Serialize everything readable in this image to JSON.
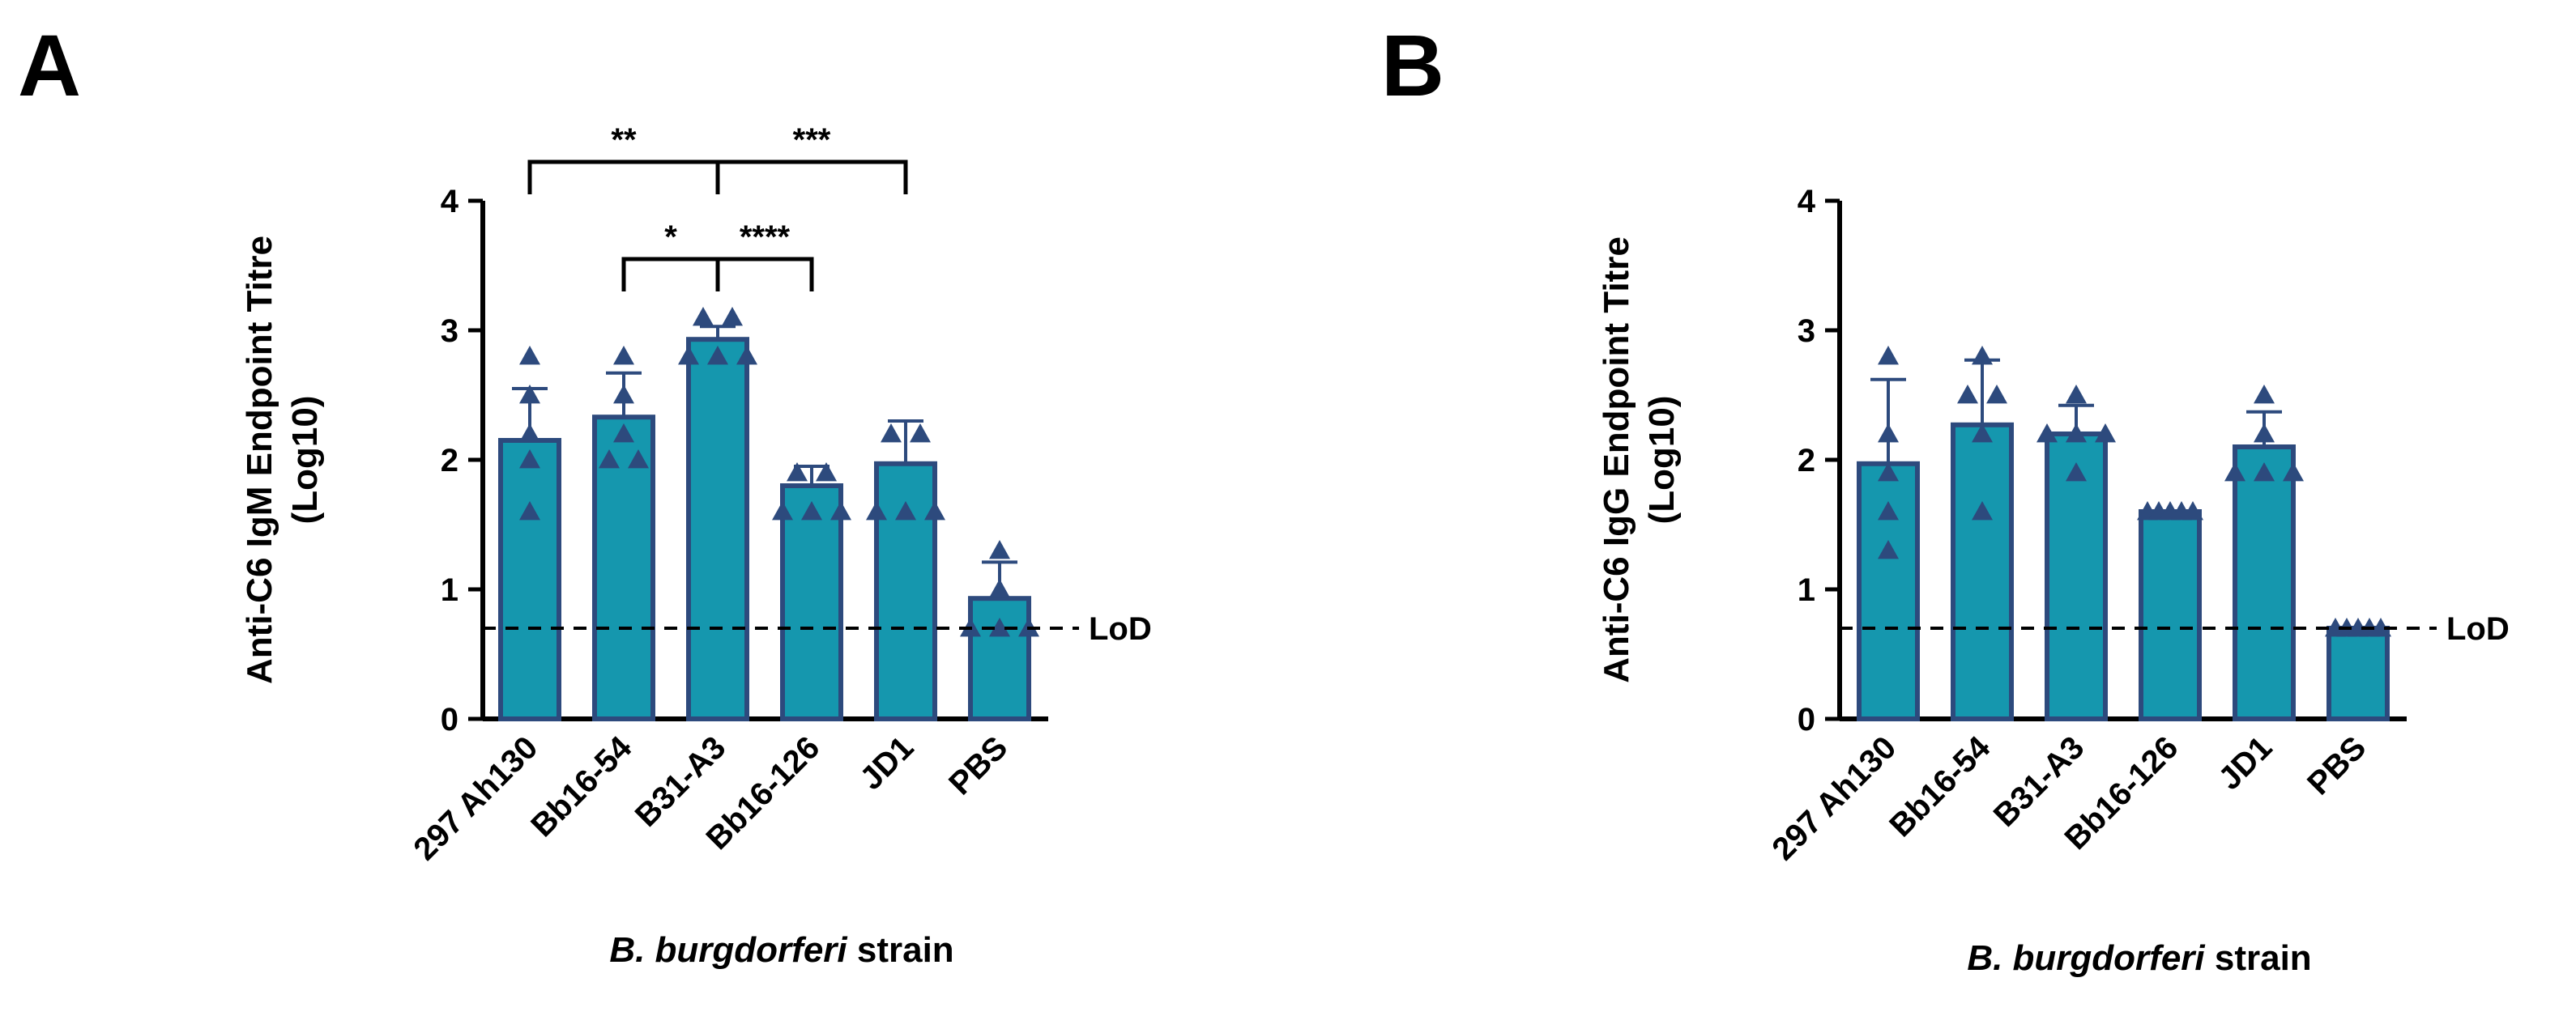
{
  "chart_data": [
    {
      "panel": "A",
      "type": "bar",
      "title": "",
      "ylabel_line1": "Anti-C6 IgM Endpoint Titre",
      "ylabel_line2": "(Log10)",
      "xlabel_italic": "B. burgdorferi",
      "xlabel_rest": " strain",
      "categories": [
        "297 Ah130",
        "Bb16-54",
        "B31-A3",
        "Bb16-126",
        "JD1",
        "PBS"
      ],
      "values": [
        2.15,
        2.33,
        2.93,
        1.8,
        1.97,
        0.93
      ],
      "sd": [
        0.4,
        0.34,
        0.1,
        0.15,
        0.33,
        0.28
      ],
      "points": [
        [
          2.8,
          2.5,
          2.2,
          2.0,
          1.6
        ],
        [
          2.8,
          2.5,
          2.2,
          2.0,
          2.0
        ],
        [
          3.1,
          3.1,
          2.8,
          2.8,
          2.8
        ],
        [
          1.9,
          1.9,
          1.6,
          1.6,
          1.6
        ],
        [
          2.2,
          2.2,
          1.6,
          1.6,
          1.6
        ],
        [
          1.3,
          1.0,
          0.7,
          0.7,
          0.7
        ]
      ],
      "ylim": [
        0,
        4
      ],
      "yticks": [
        "0",
        "1",
        "2",
        "3",
        "4"
      ],
      "lod_value": 0.7,
      "lod_label": "LoD",
      "significance": [
        {
          "from": 0,
          "to": 2,
          "label": "**",
          "level": 1
        },
        {
          "from": 2,
          "to": 4,
          "label": "***",
          "level": 1
        },
        {
          "from": 1,
          "to": 2,
          "label": "*",
          "level": 0
        },
        {
          "from": 2,
          "to": 3,
          "label": "****",
          "level": 0
        }
      ]
    },
    {
      "panel": "B",
      "type": "bar",
      "title": "",
      "ylabel_line1": "Anti-C6 IgG Endpoint Titre",
      "ylabel_line2": "(Log10)",
      "xlabel_italic": "B. burgdorferi",
      "xlabel_rest": " strain",
      "categories": [
        "297 Ah130",
        "Bb16-54",
        "B31-A3",
        "Bb16-126",
        "JD1",
        "PBS"
      ],
      "values": [
        1.97,
        2.27,
        2.2,
        1.6,
        2.1,
        0.7
      ],
      "sd": [
        0.65,
        0.5,
        0.22,
        0.0,
        0.27,
        0.0
      ],
      "points": [
        [
          2.8,
          2.2,
          1.9,
          1.6,
          1.3
        ],
        [
          2.8,
          2.5,
          2.5,
          2.2,
          1.6
        ],
        [
          2.5,
          2.2,
          2.2,
          2.2,
          1.9
        ],
        [
          1.6,
          1.6,
          1.6,
          1.6,
          1.6
        ],
        [
          2.5,
          2.2,
          1.9,
          1.9,
          1.9
        ],
        [
          0.7,
          0.7,
          0.7,
          0.7,
          0.7
        ]
      ],
      "ylim": [
        0,
        4
      ],
      "yticks": [
        "0",
        "1",
        "2",
        "3",
        "4"
      ],
      "lod_value": 0.7,
      "lod_label": "LoD",
      "significance": []
    }
  ],
  "colors": {
    "bar_fill": "#1597ae",
    "bar_stroke": "#2d4a7d",
    "point": "#2d4a7d",
    "axis": "#000000"
  }
}
